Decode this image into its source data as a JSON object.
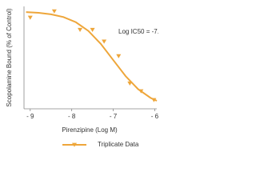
{
  "chart_data": {
    "type": "scatter",
    "y_label": "Scopolamine Bound (% of Control)",
    "x_label": "Pirenzipine (Log M)",
    "annotation": "Log IC50 = -7.0",
    "series": [
      {
        "name": "Triplicate Data",
        "color": "#eea63a",
        "x": [
          -9.0,
          -8.42,
          -7.8,
          -7.5,
          -7.22,
          -6.87,
          -6.6,
          -6.33,
          -6.02
        ],
        "values": [
          93.5,
          100,
          81,
          81,
          69,
          54,
          26,
          18,
          9
        ],
        "curve": {
          "x": [
            -9.1,
            -8.8,
            -8.5,
            -8.2,
            -7.9,
            -7.6,
            -7.3,
            -7.0,
            -6.7,
            -6.4,
            -6.1,
            -5.95
          ],
          "values": [
            99.2,
            98.4,
            96.9,
            94.1,
            88.8,
            79.9,
            66.6,
            50,
            33.4,
            20.1,
            11.2,
            8.2
          ]
        }
      }
    ],
    "xlim": [
      -9.15,
      -5.95
    ],
    "ylim": [
      0,
      105
    ],
    "xticks": [
      {
        "value": -9,
        "label": "- 9"
      },
      {
        "value": -8,
        "label": "- 8"
      },
      {
        "value": -7,
        "label": "- 7"
      },
      {
        "value": -6,
        "label": "- 6"
      }
    ]
  }
}
